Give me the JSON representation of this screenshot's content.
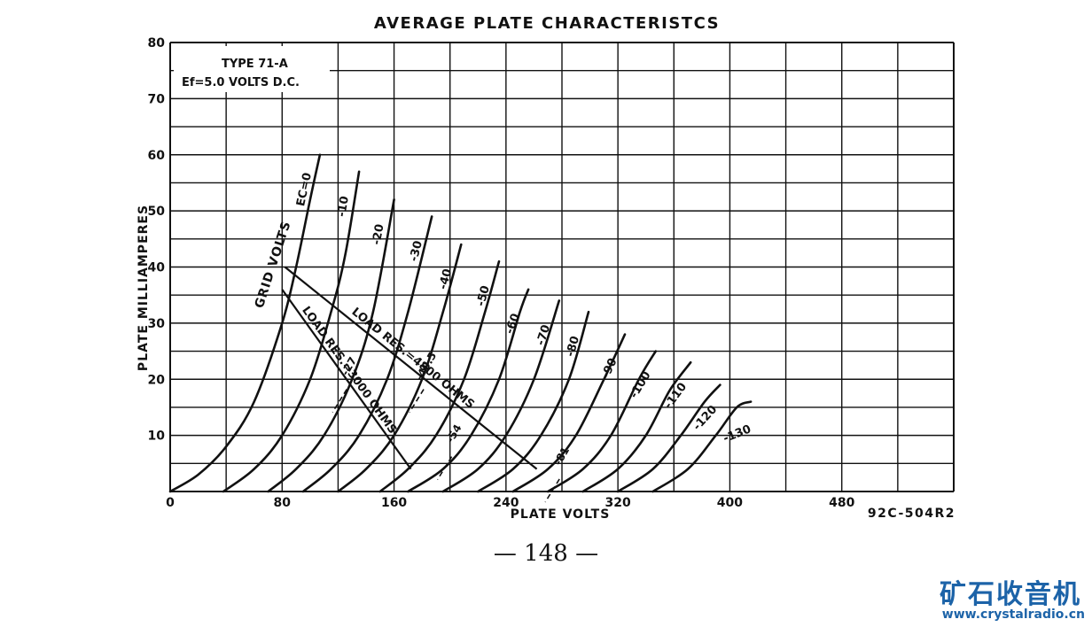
{
  "page_number": "— 148 —",
  "watermark": {
    "name": "矿石收音机",
    "url": "www.crystalradio.cn",
    "color": "#1c63a8"
  },
  "chart_data": {
    "type": "line",
    "title": "AVERAGE PLATE CHARACTERISTCS",
    "xlabel": "PLATE VOLTS",
    "ylabel": "PLATE MILLIAMPERES",
    "xlim": [
      0,
      560
    ],
    "ylim": [
      0,
      80
    ],
    "xticks": [
      0,
      80,
      160,
      240,
      320,
      400,
      480
    ],
    "yticks": [
      10,
      20,
      30,
      40,
      50,
      60,
      70,
      80
    ],
    "grid": true,
    "figure_code": "92C-504R2",
    "info_box": [
      "TYPE 71-A",
      "Ef=5.0 VOLTS D.C."
    ],
    "grid_volts_label": "GRID VOLTS",
    "series": [
      {
        "name": "EC=0",
        "points": [
          [
            0,
            0
          ],
          [
            20,
            3
          ],
          [
            40,
            8
          ],
          [
            60,
            16
          ],
          [
            80,
            30
          ],
          [
            90,
            40
          ],
          [
            100,
            52
          ],
          [
            107,
            60
          ]
        ]
      },
      {
        "name": "-10",
        "points": [
          [
            38,
            0
          ],
          [
            60,
            4
          ],
          [
            80,
            10
          ],
          [
            100,
            20
          ],
          [
            115,
            32
          ],
          [
            125,
            42
          ],
          [
            135,
            57
          ]
        ]
      },
      {
        "name": "-20",
        "points": [
          [
            70,
            0
          ],
          [
            90,
            4
          ],
          [
            110,
            10
          ],
          [
            130,
            20
          ],
          [
            145,
            32
          ],
          [
            160,
            52
          ]
        ]
      },
      {
        "name": "-30",
        "points": [
          [
            95,
            0
          ],
          [
            115,
            4
          ],
          [
            135,
            10
          ],
          [
            155,
            20
          ],
          [
            170,
            32
          ],
          [
            187,
            49
          ]
        ]
      },
      {
        "name": "-40",
        "points": [
          [
            120,
            0
          ],
          [
            140,
            4
          ],
          [
            160,
            10
          ],
          [
            180,
            20
          ],
          [
            195,
            32
          ],
          [
            208,
            44
          ]
        ]
      },
      {
        "name": "-50",
        "points": [
          [
            150,
            0
          ],
          [
            170,
            4
          ],
          [
            190,
            10
          ],
          [
            210,
            20
          ],
          [
            225,
            32
          ],
          [
            235,
            41
          ]
        ]
      },
      {
        "name": "-60",
        "points": [
          [
            170,
            0
          ],
          [
            195,
            4
          ],
          [
            215,
            10
          ],
          [
            235,
            20
          ],
          [
            250,
            32
          ],
          [
            256,
            36
          ]
        ]
      },
      {
        "name": "-70",
        "points": [
          [
            195,
            0
          ],
          [
            220,
            4
          ],
          [
            240,
            10
          ],
          [
            260,
            20
          ],
          [
            278,
            34
          ]
        ]
      },
      {
        "name": "-80",
        "points": [
          [
            220,
            0
          ],
          [
            245,
            4
          ],
          [
            265,
            10
          ],
          [
            285,
            20
          ],
          [
            299,
            32
          ]
        ]
      },
      {
        "name": "-90",
        "points": [
          [
            245,
            0
          ],
          [
            270,
            4
          ],
          [
            290,
            10
          ],
          [
            310,
            20
          ],
          [
            325,
            28
          ]
        ]
      },
      {
        "name": "-100",
        "points": [
          [
            270,
            0
          ],
          [
            295,
            4
          ],
          [
            315,
            10
          ],
          [
            335,
            20
          ],
          [
            347,
            25
          ]
        ]
      },
      {
        "name": "-110",
        "points": [
          [
            295,
            0
          ],
          [
            320,
            4
          ],
          [
            340,
            10
          ],
          [
            357,
            18
          ],
          [
            372,
            23
          ]
        ]
      },
      {
        "name": "-120",
        "points": [
          [
            320,
            0
          ],
          [
            345,
            4
          ],
          [
            365,
            10
          ],
          [
            382,
            16
          ],
          [
            393,
            19
          ]
        ]
      },
      {
        "name": "-130",
        "points": [
          [
            345,
            0
          ],
          [
            370,
            4
          ],
          [
            390,
            10
          ],
          [
            405,
            15
          ],
          [
            415,
            16
          ]
        ]
      }
    ],
    "load_lines": [
      {
        "name": "LOAD RES.=4800 OHMS",
        "points": [
          [
            82,
            40
          ],
          [
            262,
            4
          ]
        ]
      },
      {
        "name": "LOAD RES.=3000 OHMS",
        "points": [
          [
            80,
            36
          ],
          [
            172,
            4
          ]
        ]
      }
    ],
    "operating_point_labels": [
      {
        "text": "-27",
        "x": 130,
        "y": 22
      },
      {
        "text": "-40.5",
        "x": 185,
        "y": 22
      },
      {
        "text": "-54",
        "x": 205,
        "y": 10
      },
      {
        "text": "-81",
        "x": 282,
        "y": 6
      }
    ]
  }
}
